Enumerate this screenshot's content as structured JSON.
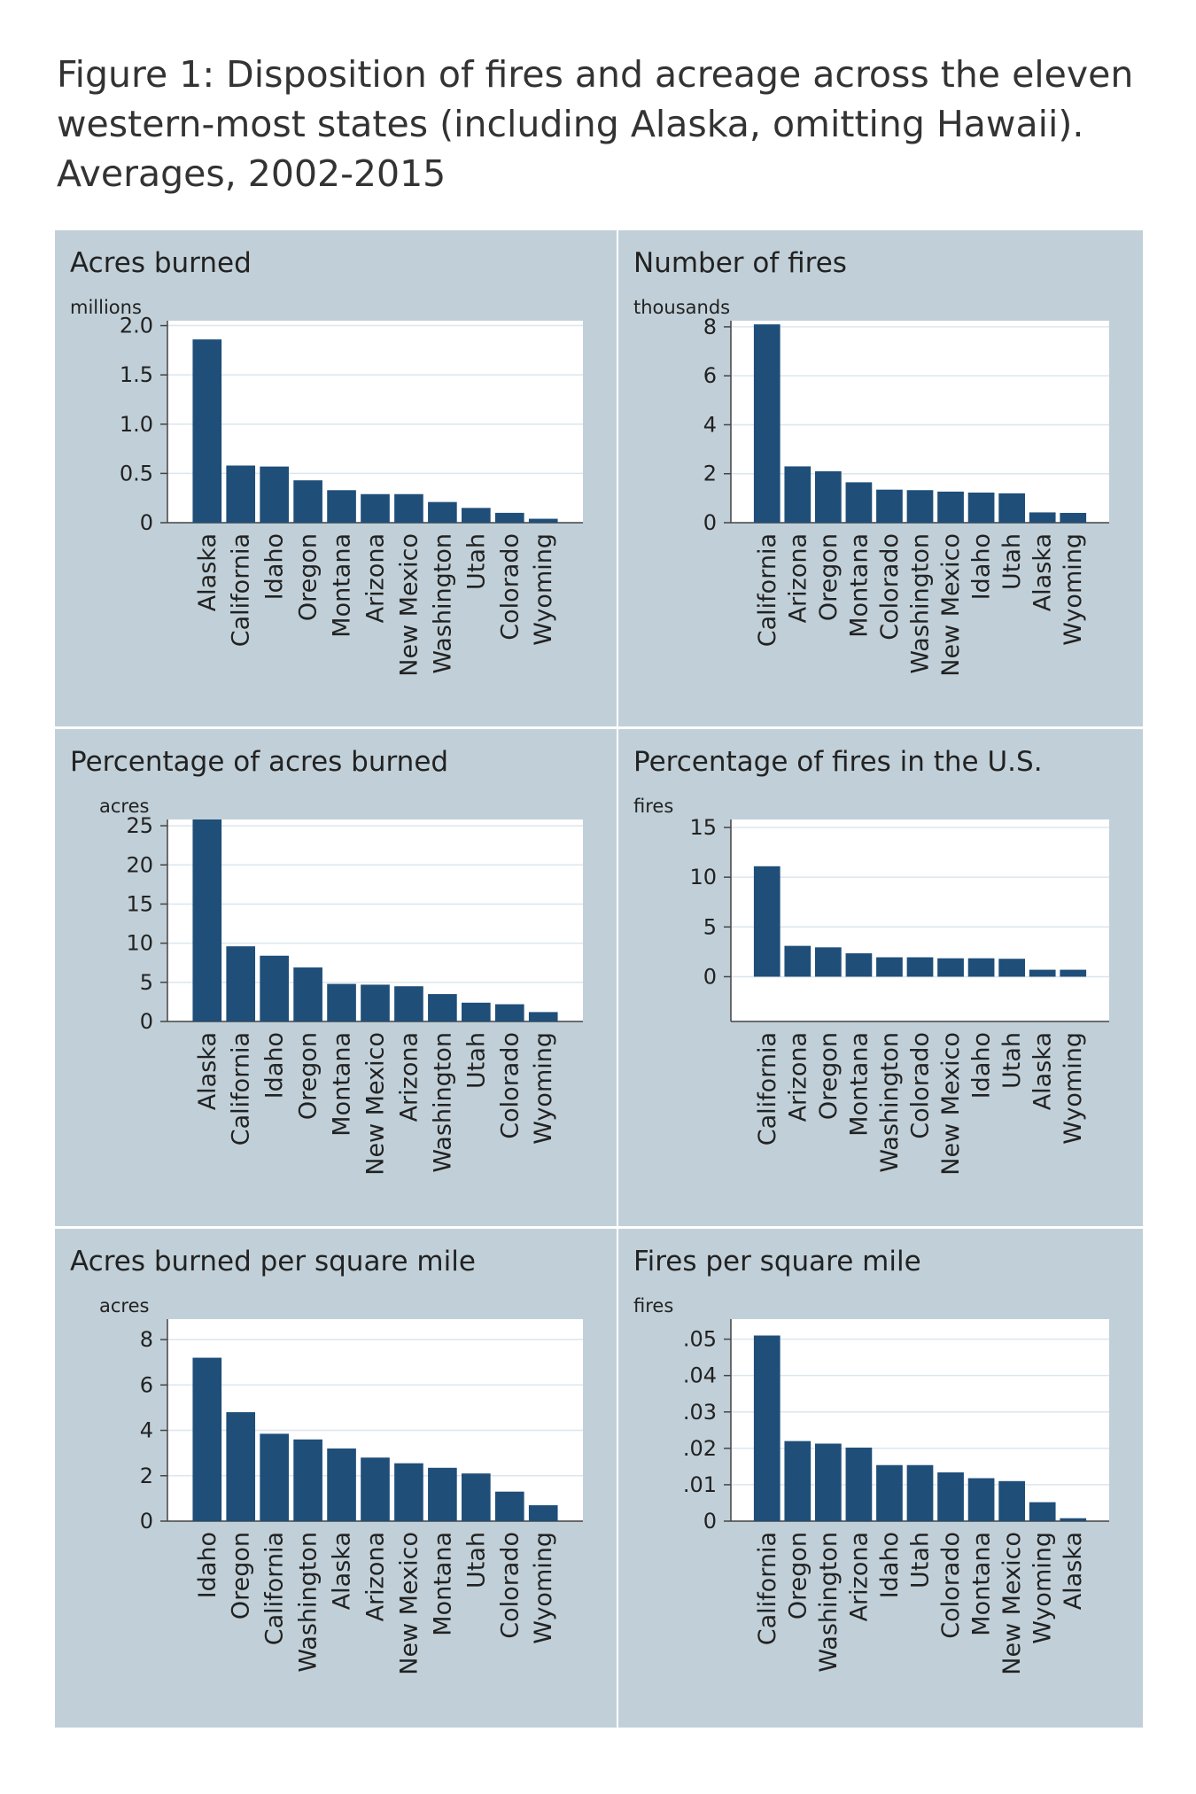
{
  "figure": {
    "label": "Figure 1",
    "caption": ": Disposition of fires and acreage across the eleven western-most states (including Alaska, omitting Hawaii). Averages, 2002-2015"
  },
  "colors": {
    "bar": "#1f4e79",
    "panel": "#c1d0d8",
    "plot": "#ffffff",
    "grid": "#dde6eb",
    "axis": "#444444",
    "text": "#222222"
  },
  "chart_data": [
    {
      "type": "bar",
      "title": "Acres burned",
      "unit": "millions",
      "categories": [
        "Alaska",
        "California",
        "Idaho",
        "Oregon",
        "Montana",
        "Arizona",
        "New Mexico",
        "Washington",
        "Utah",
        "Colorado",
        "Wyoming"
      ],
      "values": [
        1.86,
        0.58,
        0.57,
        0.43,
        0.33,
        0.29,
        0.29,
        0.21,
        0.15,
        0.1,
        0.04
      ],
      "yticks": [
        0,
        0.5,
        1.0,
        1.5,
        2.0
      ],
      "ytick_labels": [
        "0",
        "0.5",
        "1.0",
        "1.5",
        "2.0"
      ],
      "ylim": [
        0,
        2.05
      ]
    },
    {
      "type": "bar",
      "title": "Number of fires",
      "unit": "thousands",
      "categories": [
        "California",
        "Arizona",
        "Oregon",
        "Montana",
        "Colorado",
        "Washington",
        "New Mexico",
        "Idaho",
        "Utah",
        "Alaska",
        "Wyoming"
      ],
      "values": [
        8.1,
        2.3,
        2.1,
        1.65,
        1.35,
        1.33,
        1.27,
        1.23,
        1.2,
        0.42,
        0.4
      ],
      "yticks": [
        0,
        2,
        4,
        6,
        8
      ],
      "ytick_labels": [
        "0",
        "2",
        "4",
        "6",
        "8"
      ],
      "ylim": [
        0,
        8.25
      ]
    },
    {
      "type": "bar",
      "title": "Percentage of acres burned",
      "unit": "acres",
      "categories": [
        "Alaska",
        "California",
        "Idaho",
        "Oregon",
        "Montana",
        "New Mexico",
        "Arizona",
        "Washington",
        "Utah",
        "Colorado",
        "Wyoming"
      ],
      "values": [
        25.8,
        9.6,
        8.4,
        6.9,
        4.8,
        4.7,
        4.5,
        3.5,
        2.4,
        2.2,
        1.2
      ],
      "yticks": [
        0,
        5,
        10,
        15,
        20,
        25
      ],
      "ytick_labels": [
        "0",
        "5",
        "10",
        "15",
        "20",
        "25"
      ],
      "ylim": [
        0,
        25.8
      ]
    },
    {
      "type": "bar",
      "title": "Percentage of fires in the U.S.",
      "unit": "fires",
      "categories": [
        "California",
        "Arizona",
        "Oregon",
        "Montana",
        "Washington",
        "Colorado",
        "New Mexico",
        "Idaho",
        "Utah",
        "Alaska",
        "Wyoming"
      ],
      "values": [
        11.1,
        3.1,
        2.95,
        2.35,
        1.95,
        1.95,
        1.85,
        1.85,
        1.8,
        0.7,
        0.7
      ],
      "yticks": [
        0,
        5,
        10,
        15
      ],
      "ytick_labels": [
        "0",
        "5",
        "10",
        "15"
      ],
      "ylim": [
        -4.5,
        15.8
      ]
    },
    {
      "type": "bar",
      "title": "Acres burned per square mile",
      "unit": "acres",
      "categories": [
        "Idaho",
        "Oregon",
        "California",
        "Washington",
        "Alaska",
        "Arizona",
        "New Mexico",
        "Montana",
        "Utah",
        "Colorado",
        "Wyoming"
      ],
      "values": [
        7.2,
        4.8,
        3.85,
        3.6,
        3.2,
        2.8,
        2.55,
        2.35,
        2.1,
        1.3,
        0.7
      ],
      "yticks": [
        0,
        2,
        4,
        6,
        8
      ],
      "ytick_labels": [
        "0",
        "2",
        "4",
        "6",
        "8"
      ],
      "ylim": [
        0,
        8.9
      ]
    },
    {
      "type": "bar",
      "title": "Fires per square mile",
      "unit": "fires",
      "categories": [
        "California",
        "Oregon",
        "Washington",
        "Arizona",
        "Idaho",
        "Utah",
        "Colorado",
        "Montana",
        "New Mexico",
        "Wyoming",
        "Alaska"
      ],
      "values": [
        0.051,
        0.022,
        0.0213,
        0.0202,
        0.0154,
        0.0154,
        0.0134,
        0.0118,
        0.011,
        0.0052,
        0.0008
      ],
      "yticks": [
        0,
        0.01,
        0.02,
        0.03,
        0.04,
        0.05
      ],
      "ytick_labels": [
        "0",
        ".01",
        ".02",
        ".03",
        ".04",
        ".05"
      ],
      "ylim": [
        0,
        0.0555
      ]
    }
  ]
}
